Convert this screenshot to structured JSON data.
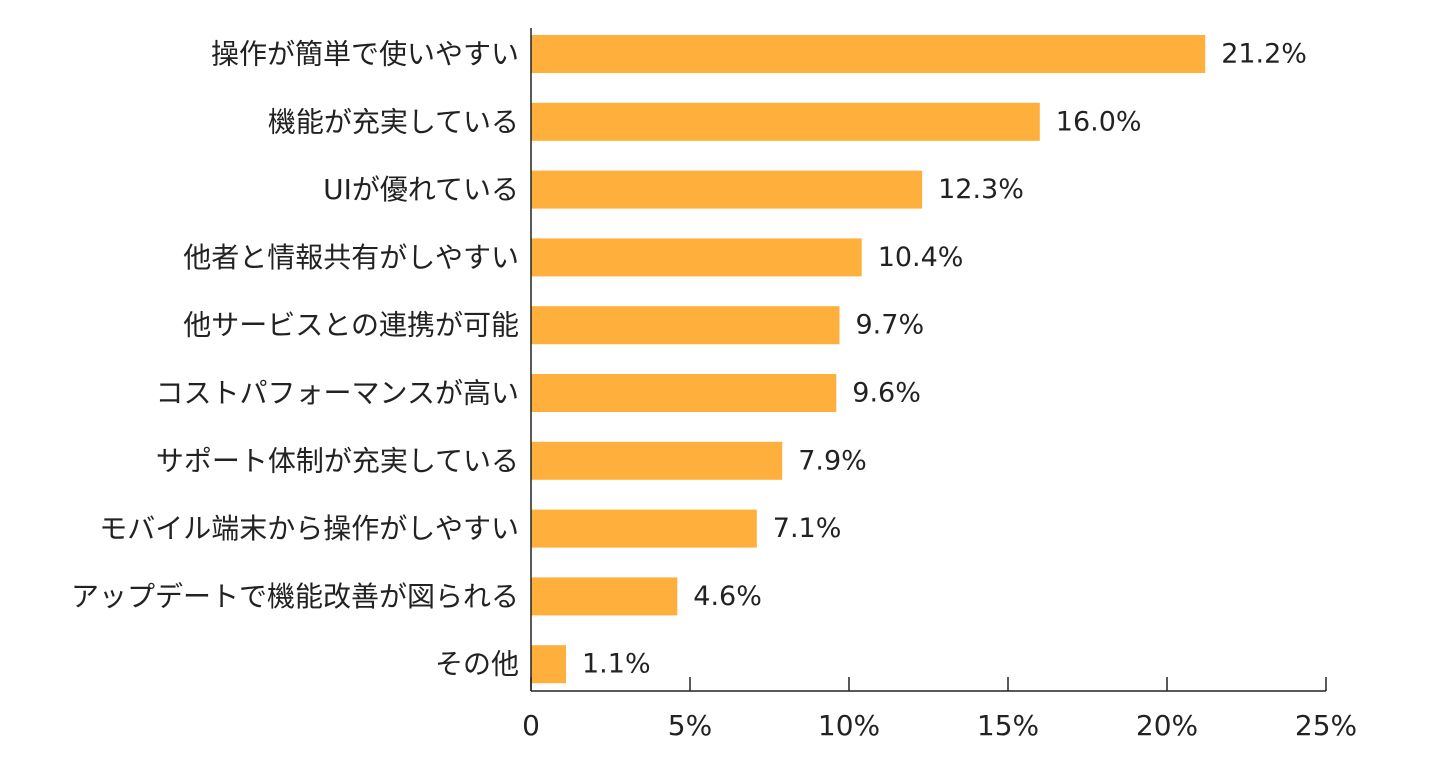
{
  "chart_data": {
    "type": "bar",
    "orientation": "horizontal",
    "title": "",
    "xlabel": "",
    "ylabel": "",
    "xlim": [
      0,
      25
    ],
    "x_ticks": [
      0,
      5,
      10,
      15,
      20,
      25
    ],
    "x_tick_labels": [
      "0",
      "5%",
      "10%",
      "15%",
      "20%",
      "25%"
    ],
    "grid": false,
    "legend": "none",
    "bar_color": "#FFAF3C",
    "categories": [
      "操作が簡単で使いやすい",
      "機能が充実している",
      "UIが優れている",
      "他者と情報共有がしやすい",
      "他サービスとの連携が可能",
      "コストパフォーマンスが高い",
      "サポート体制が充実している",
      "モバイル端末から操作がしやすい",
      "アップデートで機能改善が図られる",
      "その他"
    ],
    "values": [
      21.2,
      16.0,
      12.3,
      10.4,
      9.7,
      9.6,
      7.9,
      7.1,
      4.6,
      1.1
    ],
    "value_labels": [
      "21.2%",
      "16.0%",
      "12.3%",
      "10.4%",
      "9.7%",
      "9.6%",
      "7.9%",
      "7.1%",
      "4.6%",
      "1.1%"
    ]
  }
}
